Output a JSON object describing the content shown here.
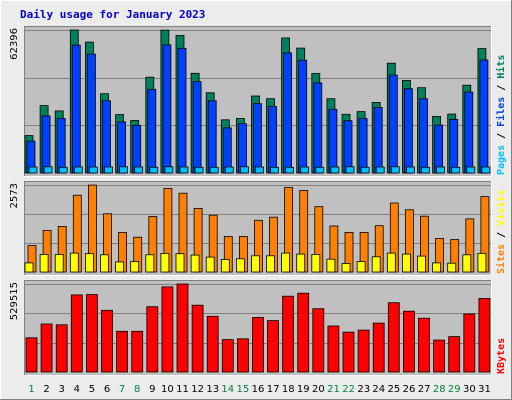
{
  "colors": {
    "background": "#ececec",
    "panel": "#c0c0c0",
    "hits": "#00805c",
    "files": "#0040ff",
    "pages": "#00c0ff",
    "visits": "#ff8000",
    "sites": "#ffff00",
    "kbytes": "#ff0000",
    "title": "#0000cc",
    "weekend_label": "#008040",
    "weekday_label": "#000000"
  },
  "chart_data": {
    "type": "bar",
    "title": "Daily usage for January 2023",
    "categories": [
      "1",
      "2",
      "3",
      "4",
      "5",
      "6",
      "7",
      "8",
      "9",
      "10",
      "11",
      "12",
      "13",
      "14",
      "15",
      "16",
      "17",
      "18",
      "19",
      "20",
      "21",
      "22",
      "23",
      "24",
      "25",
      "26",
      "27",
      "28",
      "29",
      "30",
      "31"
    ],
    "weekend_days": [
      1,
      7,
      8,
      14,
      15,
      21,
      22,
      28,
      29
    ],
    "panels": [
      {
        "name": "hits-files-pages",
        "ymax_label": "62396",
        "ymax": 62396,
        "side_label": [
          {
            "text": "Pages",
            "color": "#00c0ff"
          },
          {
            "text": " / ",
            "color": "#000000"
          },
          {
            "text": "Files",
            "color": "#0040ff"
          },
          {
            "text": " / ",
            "color": "#000000"
          },
          {
            "text": "Hits",
            "color": "#00805c"
          }
        ],
        "series": [
          {
            "name": "Hits",
            "color": "#00805c",
            "values": [
              16300,
              29400,
              27100,
              62400,
              57100,
              34600,
              25500,
              22900,
              41800,
              62300,
              60000,
              43500,
              35000,
              23200,
              23800,
              33600,
              32400,
              58900,
              54500,
              43400,
              32400,
              25600,
              26800,
              30800,
              47900,
              40400,
              37200,
              24700,
              25700,
              38300,
              54300
            ]
          },
          {
            "name": "Files",
            "color": "#0040ff",
            "values": [
              13900,
              24900,
              23800,
              55800,
              51900,
              31500,
              22300,
              20800,
              36500,
              55900,
              54400,
              39900,
              31500,
              19700,
              21500,
              30300,
              29000,
              52400,
              49200,
              39300,
              27800,
              22800,
              23800,
              28600,
              42700,
              36800,
              32400,
              20900,
              23400,
              35300,
              49300
            ]
          },
          {
            "name": "Pages",
            "color": "#00c0ff",
            "values": [
              2600,
              2700,
              2500,
              2600,
              2600,
              2600,
              2700,
              2600,
              2500,
              2700,
              2600,
              2500,
              2500,
              2600,
              2700,
              2600,
              2500,
              2500,
              2600,
              2500,
              2600,
              2700,
              2500,
              2600,
              2700,
              2600,
              2500,
              2600,
              2500,
              2600,
              2600
            ]
          }
        ]
      },
      {
        "name": "visits-sites",
        "ymax_label": "2573",
        "ymax": 2573,
        "side_label": [
          {
            "text": "Sites",
            "color": "#ff8000"
          },
          {
            "text": " / ",
            "color": "#000000"
          },
          {
            "text": "Visits",
            "color": "#ffff00"
          }
        ],
        "series": [
          {
            "name": "Visits",
            "color": "#ff8000",
            "values": [
              780,
              1230,
              1350,
              2270,
              2570,
              1720,
              1170,
              1030,
              1640,
              2470,
              2330,
              1880,
              1680,
              1050,
              1050,
              1530,
              1620,
              2500,
              2410,
              1930,
              1360,
              1170,
              1170,
              1370,
              2040,
              1840,
              1650,
              990,
              960,
              1570,
              2230
            ]
          },
          {
            "name": "Sites",
            "color": "#ffff00",
            "values": [
              270,
              520,
              520,
              560,
              540,
              510,
              300,
              310,
              510,
              550,
              540,
              500,
              440,
              370,
              390,
              480,
              480,
              560,
              530,
              520,
              380,
              250,
              310,
              450,
              560,
              530,
              470,
              270,
              260,
              510,
              550
            ]
          }
        ]
      },
      {
        "name": "kbytes",
        "ymax_label": "529515",
        "ymax": 529515,
        "side_label": [
          {
            "text": "KBytes",
            "color": "#ff0000"
          }
        ],
        "series": [
          {
            "name": "KBytes",
            "color": "#ff0000",
            "values": [
              206000,
              289000,
              284000,
              464000,
              466000,
              371000,
              245000,
              245000,
              393000,
              512000,
              529500,
              402000,
              335000,
              195000,
              200000,
              328000,
              309000,
              456000,
              474000,
              381000,
              277000,
              240000,
              252000,
              294000,
              417000,
              366000,
              324000,
              192000,
              213000,
              349000,
              443000
            ]
          }
        ]
      }
    ]
  }
}
